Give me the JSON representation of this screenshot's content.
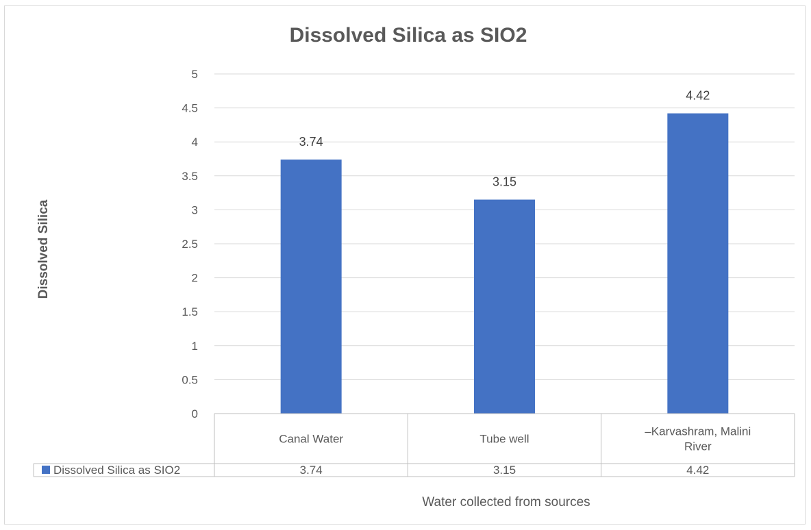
{
  "chart_data": {
    "type": "bar",
    "title": "Dissolved Silica as SIO2",
    "xlabel": "Water collected from sources",
    "ylabel": "Dissolved Silica",
    "categories": [
      [
        "Canal Water"
      ],
      [
        "Tube well"
      ],
      [
        "–Karvashram, Malini",
        "River"
      ]
    ],
    "series": [
      {
        "name": "Dissolved Silica as SIO2",
        "values": [
          3.74,
          3.15,
          4.42
        ],
        "color": "#4472c4"
      }
    ],
    "ylim": [
      0,
      5
    ],
    "yticks": [
      "0",
      "0.5",
      "1",
      "1.5",
      "2",
      "2.5",
      "3",
      "3.5",
      "4",
      "4.5",
      "5"
    ],
    "data_labels": [
      "3.74",
      "3.15",
      "4.42"
    ],
    "table_values": [
      "3.74",
      "3.15",
      "4.42"
    ],
    "grid": true,
    "legend": "data-table"
  }
}
